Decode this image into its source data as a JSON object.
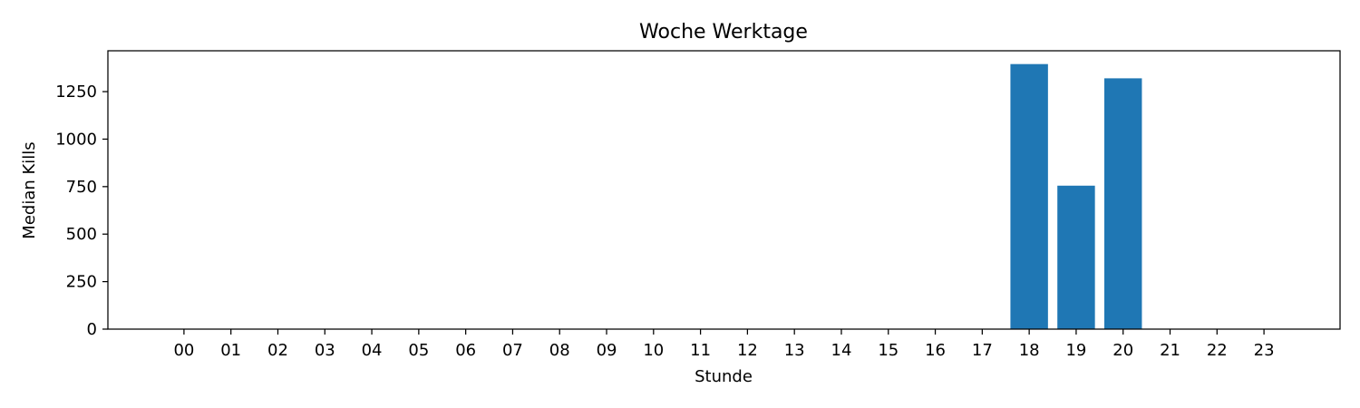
{
  "chart_data": {
    "type": "bar",
    "title": "Woche Werktage",
    "xlabel": "Stunde",
    "ylabel": "Median Kills",
    "categories": [
      "00",
      "01",
      "02",
      "03",
      "04",
      "05",
      "06",
      "07",
      "08",
      "09",
      "10",
      "11",
      "12",
      "13",
      "14",
      "15",
      "16",
      "17",
      "18",
      "19",
      "20",
      "21",
      "22",
      "23"
    ],
    "values": [
      0,
      0,
      0,
      0,
      0,
      0,
      0,
      0,
      0,
      0,
      0,
      0,
      0,
      0,
      0,
      0,
      0,
      0,
      1395,
      755,
      1320,
      0,
      0,
      0
    ],
    "ylim": [
      0,
      1465
    ],
    "yticks": [
      0,
      250,
      500,
      750,
      1000,
      1250
    ],
    "bar_color": "#1f77b4",
    "grid": false,
    "legend": "none"
  }
}
